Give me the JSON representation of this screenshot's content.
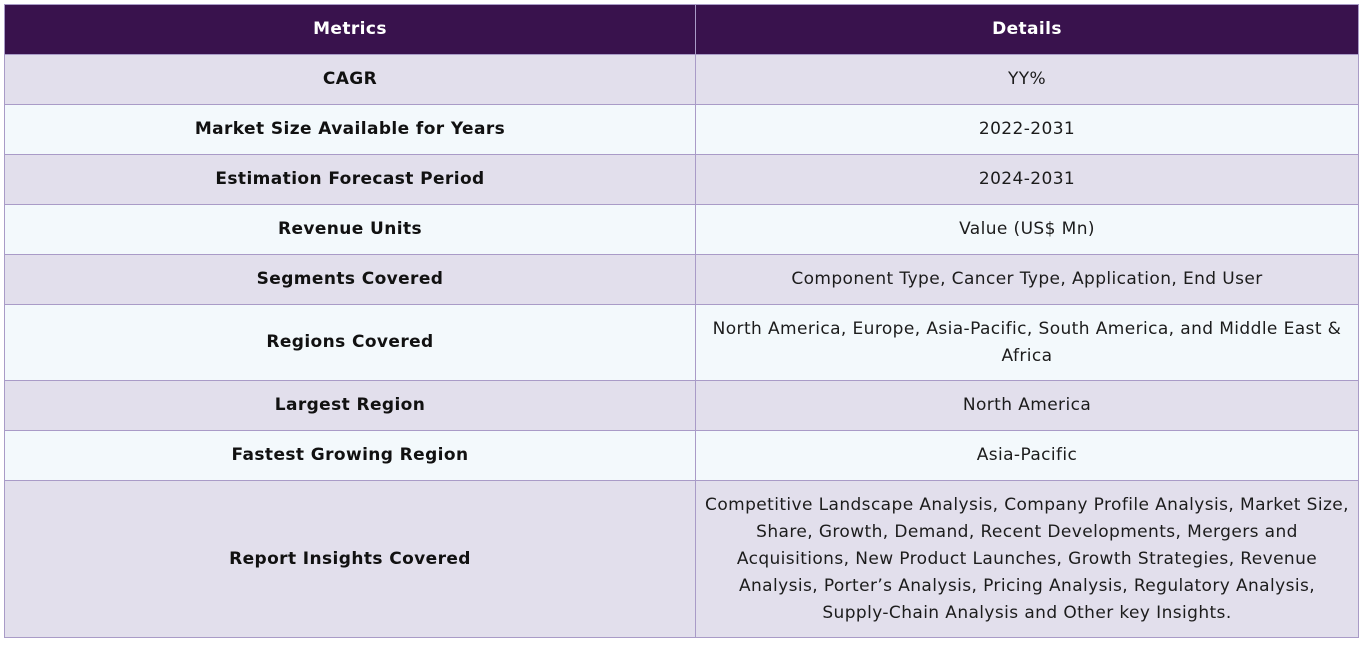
{
  "table": {
    "headers": {
      "metric": "Metrics",
      "detail": "Details"
    },
    "rows": [
      {
        "metric": "CAGR",
        "detail": "YY%"
      },
      {
        "metric": "Market Size Available for Years",
        "detail": "2022-2031"
      },
      {
        "metric": "Estimation Forecast Period",
        "detail": "2024-2031"
      },
      {
        "metric": "Revenue Units",
        "detail": "Value (US$ Mn)"
      },
      {
        "metric": "Segments Covered",
        "detail": "Component Type, Cancer Type, Application, End User"
      },
      {
        "metric": "Regions Covered",
        "detail": "North America, Europe, Asia-Pacific, South America, and Middle East & Africa"
      },
      {
        "metric": "Largest Region",
        "detail": "North America"
      },
      {
        "metric": "Fastest Growing Region",
        "detail": "Asia-Pacific"
      },
      {
        "metric": "Report Insights Covered",
        "detail": "Competitive Landscape Analysis, Company Profile Analysis, Market Size, Share, Growth, Demand, Recent Developments, Mergers and Acquisitions, New Product Launches, Growth Strategies, Revenue Analysis, Porter’s Analysis, Pricing Analysis, Regulatory Analysis, Supply-Chain Analysis and Other key Insights."
      }
    ],
    "colors": {
      "header_bg": "#39124d",
      "row_odd_bg": "#e2dfec",
      "row_even_bg": "#f3f9fc",
      "border": "#a99bc7"
    }
  }
}
